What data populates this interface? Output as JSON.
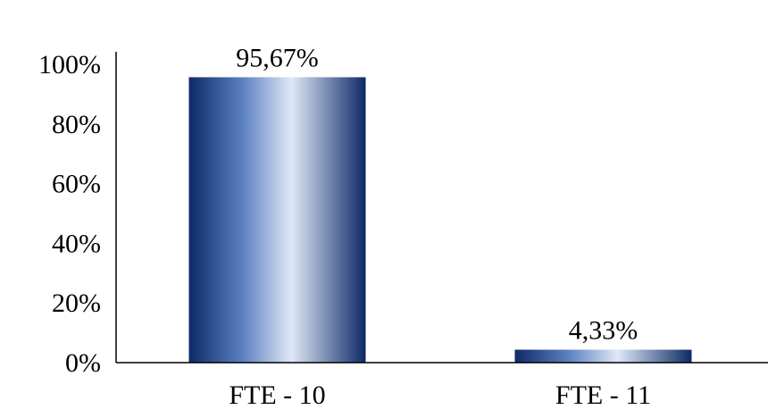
{
  "chart_data": {
    "type": "bar",
    "categories": [
      "FTE - 10",
      "FTE - 11"
    ],
    "values": [
      95.67,
      4.33
    ],
    "data_labels": [
      "95,67%",
      "4,33%"
    ],
    "title": "",
    "xlabel": "",
    "ylabel": "",
    "ylim": [
      0,
      100
    ],
    "yticks": [
      0,
      20,
      40,
      60,
      80,
      100
    ],
    "ytick_labels": [
      "0%",
      "20%",
      "40%",
      "60%",
      "80%",
      "100%"
    ],
    "grid": false,
    "legend": "none",
    "colors": {
      "bar_dark": "#0d2a66",
      "bar_mid": "#5a7fc0",
      "bar_light": "#dfe8f7",
      "axis": "#000000"
    }
  }
}
